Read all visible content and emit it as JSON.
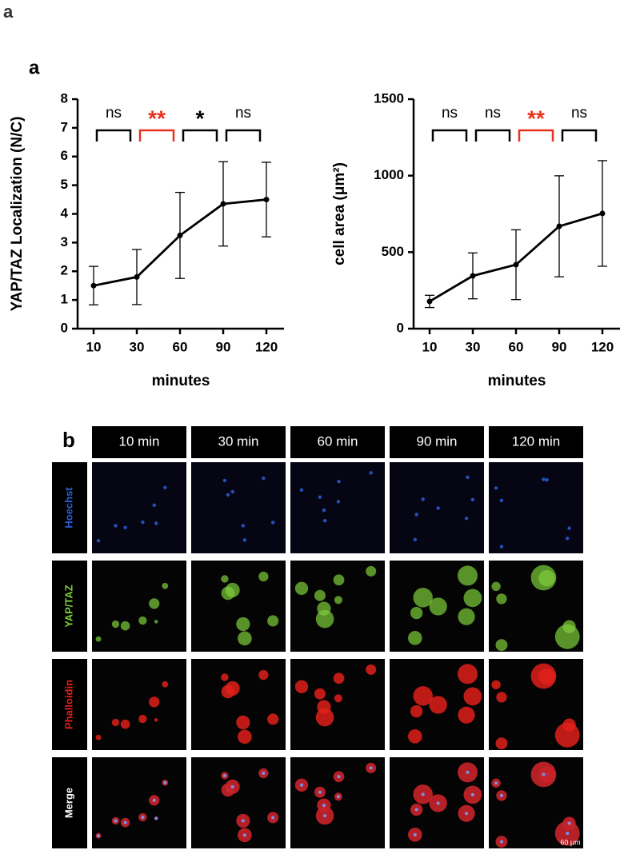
{
  "panel_labels": [
    "a",
    "a",
    "b"
  ],
  "chart_data": [
    {
      "type": "line",
      "ylabel": "YAP/TAZ Localization (N/C)",
      "xlabel": "minutes",
      "categories": [
        "10",
        "30",
        "60",
        "90",
        "120"
      ],
      "values": [
        1.5,
        1.8,
        3.25,
        4.35,
        4.5
      ],
      "errors": [
        0.67,
        0.96,
        1.5,
        1.47,
        1.3
      ],
      "color": "#000000",
      "ylim": [
        0,
        8
      ],
      "yticks": [
        0,
        1,
        2,
        3,
        4,
        5,
        6,
        7,
        8
      ],
      "annotations": [
        {
          "text": "ns",
          "color": "#000000"
        },
        {
          "text": "**",
          "color": "#e8321e"
        },
        {
          "text": "*",
          "color": "#000000"
        },
        {
          "text": "ns",
          "color": "#000000"
        }
      ]
    },
    {
      "type": "line",
      "ylabel": "cell area (μm²)",
      "xlabel": "minutes",
      "categories": [
        "10",
        "30",
        "60",
        "90",
        "120"
      ],
      "values": [
        178,
        345,
        418,
        669,
        753
      ],
      "errors": [
        40,
        150,
        228,
        330,
        345
      ],
      "color": "#000000",
      "ylim": [
        0,
        1500
      ],
      "yticks": [
        0,
        500,
        1000,
        1500
      ],
      "annotations": [
        {
          "text": "ns",
          "color": "#000000"
        },
        {
          "text": "ns",
          "color": "#000000"
        },
        {
          "text": "**",
          "color": "#e8321e"
        },
        {
          "text": "ns",
          "color": "#000000"
        }
      ]
    }
  ],
  "micrographs": {
    "columns": [
      "10 min",
      "30 min",
      "60 min",
      "90 min",
      "120 min"
    ],
    "rows": [
      {
        "label": "Hoechst",
        "color": "#2b5fd9"
      },
      {
        "label": "YAP/TAZ",
        "color": "#7fcf3a"
      },
      {
        "label": "Phalloidin",
        "color": "#e0201a"
      },
      {
        "label": "Merge",
        "color": "#ffffff"
      }
    ],
    "scale_bar": "60 μm"
  }
}
